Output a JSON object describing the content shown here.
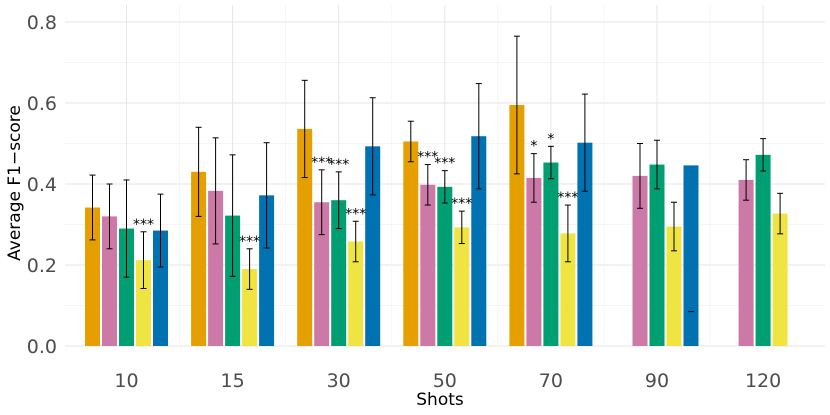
{
  "chart_data": {
    "type": "bar",
    "title": "",
    "xlabel": "Shots",
    "ylabel": "Average F1−score",
    "ylim": [
      0,
      0.82
    ],
    "yticks": [
      "0.0",
      "0.2",
      "0.4",
      "0.6",
      "0.8"
    ],
    "grid": true,
    "legend": "none",
    "categories": [
      "10",
      "15",
      "30",
      "50",
      "70",
      "90",
      "120"
    ],
    "series": [
      {
        "color": "#E69F00",
        "values": [
          0.342,
          0.43,
          0.536,
          0.505,
          0.595,
          null,
          null
        ],
        "err_low": [
          0.262,
          0.32,
          0.416,
          0.455,
          0.425,
          null,
          null
        ],
        "err_high": [
          0.422,
          0.54,
          0.656,
          0.555,
          0.765,
          null,
          null
        ],
        "sig": [
          "",
          "",
          "",
          "",
          "",
          "",
          ""
        ]
      },
      {
        "color": "#CC79A7",
        "values": [
          0.32,
          0.383,
          0.355,
          0.398,
          0.415,
          0.42,
          0.41
        ],
        "err_low": [
          0.24,
          0.252,
          0.275,
          0.348,
          0.355,
          0.34,
          0.36
        ],
        "err_high": [
          0.4,
          0.514,
          0.435,
          0.448,
          0.475,
          0.5,
          0.46
        ],
        "sig": [
          "",
          "",
          "***",
          "***",
          "*",
          "",
          ""
        ]
      },
      {
        "color": "#009E73",
        "values": [
          0.29,
          0.322,
          0.36,
          0.393,
          0.453,
          0.448,
          0.472
        ],
        "err_low": [
          0.17,
          0.172,
          0.29,
          0.353,
          0.413,
          0.388,
          0.432
        ],
        "err_high": [
          0.41,
          0.472,
          0.43,
          0.433,
          0.493,
          0.508,
          0.512
        ],
        "sig": [
          "",
          "",
          "***",
          "***",
          "*",
          "",
          ""
        ]
      },
      {
        "color": "#F0E442",
        "values": [
          0.212,
          0.19,
          0.258,
          0.293,
          0.278,
          0.295,
          0.327
        ],
        "err_low": [
          0.142,
          0.14,
          0.208,
          0.253,
          0.208,
          0.235,
          0.277
        ],
        "err_high": [
          0.282,
          0.24,
          0.308,
          0.333,
          0.348,
          0.355,
          0.377
        ],
        "sig": [
          "***",
          "***",
          "***",
          "***",
          "***",
          "",
          ""
        ]
      },
      {
        "color": "#0072B2",
        "values": [
          0.285,
          0.372,
          0.493,
          0.518,
          0.502,
          0.446,
          null
        ],
        "err_low": [
          0.195,
          0.242,
          0.373,
          0.388,
          0.382,
          null,
          null
        ],
        "err_high": [
          0.375,
          0.502,
          0.613,
          0.648,
          0.622,
          null,
          null
        ],
        "sig": [
          "",
          "",
          "",
          "",
          "",
          "",
          ""
        ]
      }
    ]
  }
}
